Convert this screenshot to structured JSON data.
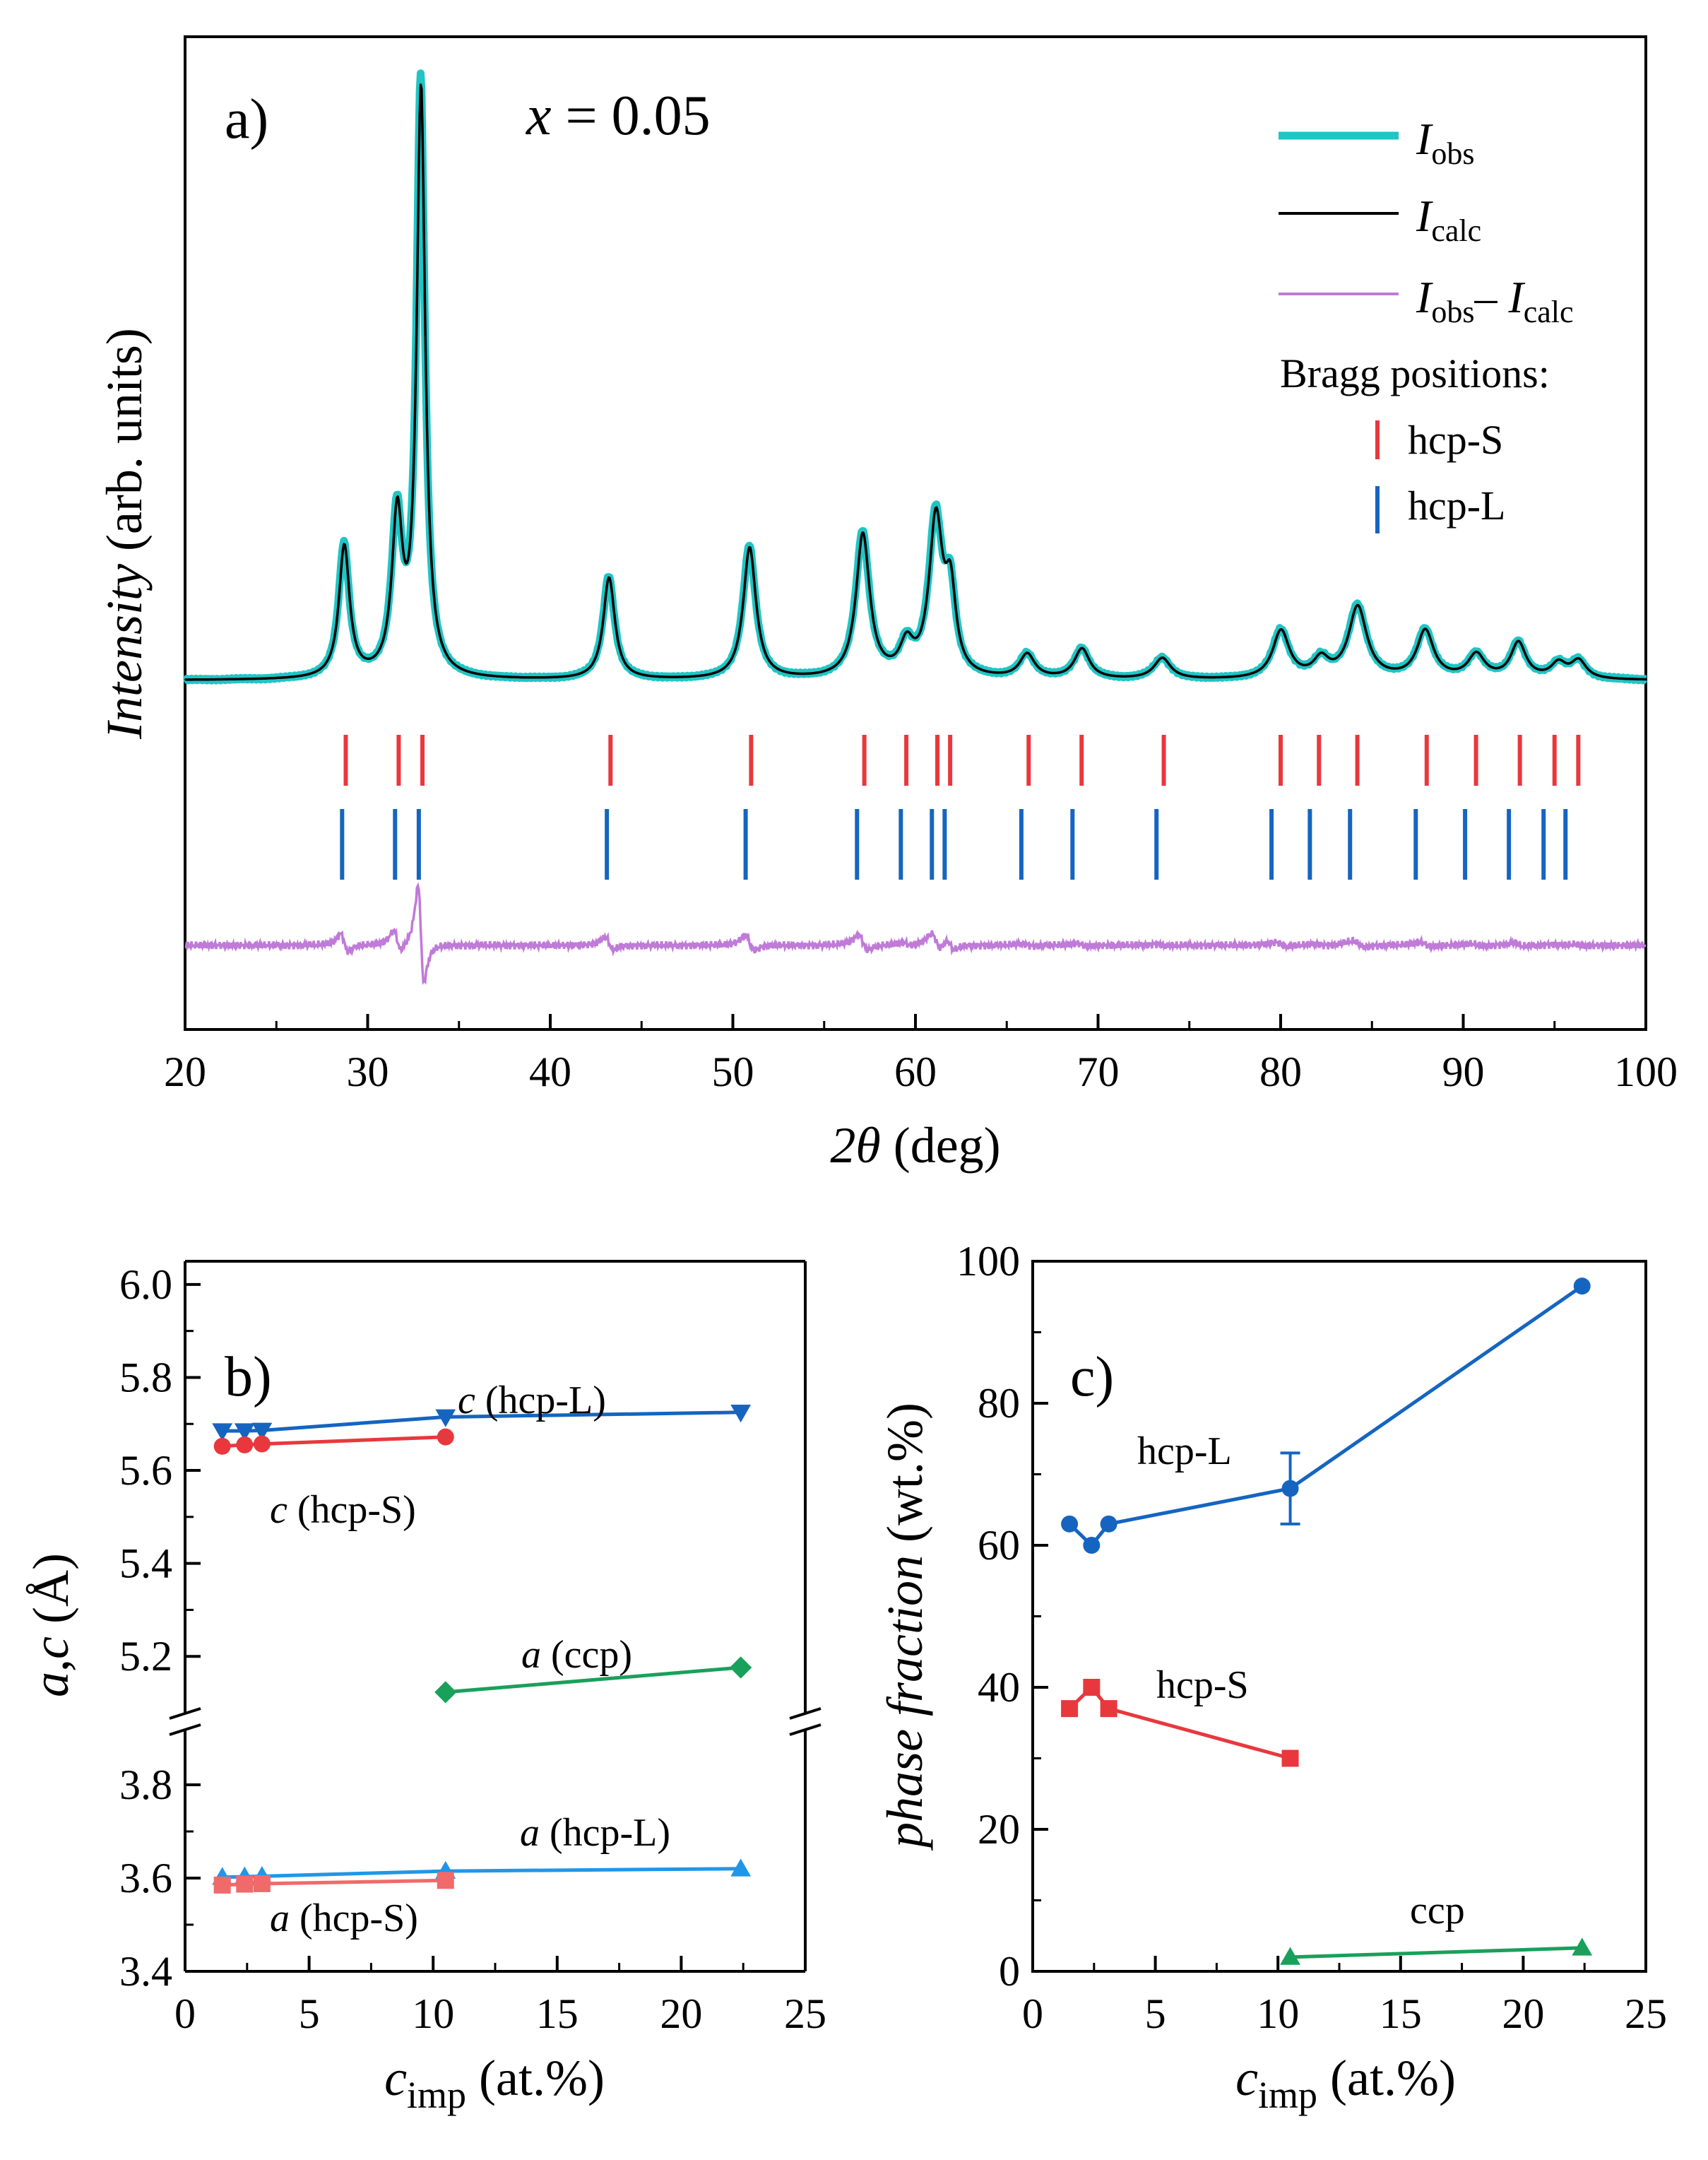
{
  "chart_data": [
    {
      "panel": "a",
      "type": "line",
      "panel_label": "a)",
      "annotation": {
        "var": "x",
        "eq": " = 0.05"
      },
      "xlabel": {
        "sym": "2θ",
        "unit": " (deg)"
      },
      "ylabel": {
        "sym": "Intensity",
        "unit": " (arb. units)"
      },
      "xlim": [
        20,
        100
      ],
      "xticks": [
        20,
        30,
        40,
        50,
        60,
        70,
        80,
        90,
        100
      ],
      "colors": {
        "obs": "#20c5c5",
        "calc": "#000000",
        "diff": "#c07ad8",
        "hcpS": "#e8383d",
        "hcpL": "#1565c0"
      },
      "legend": {
        "obs": {
          "main": "I",
          "sub": "obs"
        },
        "calc": {
          "main": "I",
          "sub": "calc"
        },
        "diff": {
          "main1": "I",
          "sub1": "obs",
          "minus": "– ",
          "main2": "I",
          "sub2": "calc"
        },
        "bragg_title": "Bragg positions:",
        "hcpS": "hcp-S",
        "hcpL": "hcp-L"
      },
      "peaks_obs": [
        {
          "pos": 28.7,
          "height": 0.22,
          "width": 0.35
        },
        {
          "pos": 31.6,
          "height": 0.26,
          "width": 0.35
        },
        {
          "pos": 32.9,
          "height": 0.98,
          "width": 0.28
        },
        {
          "pos": 43.2,
          "height": 0.17,
          "width": 0.38
        },
        {
          "pos": 50.9,
          "height": 0.22,
          "width": 0.42
        },
        {
          "pos": 57.1,
          "height": 0.24,
          "width": 0.45
        },
        {
          "pos": 59.5,
          "height": 0.05,
          "width": 0.45
        },
        {
          "pos": 61.1,
          "height": 0.26,
          "width": 0.45
        },
        {
          "pos": 61.9,
          "height": 0.13,
          "width": 0.35
        },
        {
          "pos": 66.1,
          "height": 0.04,
          "width": 0.5
        },
        {
          "pos": 69.1,
          "height": 0.05,
          "width": 0.5
        },
        {
          "pos": 73.5,
          "height": 0.035,
          "width": 0.55
        },
        {
          "pos": 80.0,
          "height": 0.08,
          "width": 0.55
        },
        {
          "pos": 82.2,
          "height": 0.03,
          "width": 0.5
        },
        {
          "pos": 84.2,
          "height": 0.12,
          "width": 0.6
        },
        {
          "pos": 87.9,
          "height": 0.08,
          "width": 0.55
        },
        {
          "pos": 90.7,
          "height": 0.04,
          "width": 0.55
        },
        {
          "pos": 93.0,
          "height": 0.06,
          "width": 0.5
        },
        {
          "pos": 95.2,
          "height": 0.025,
          "width": 0.5
        },
        {
          "pos": 96.3,
          "height": 0.03,
          "width": 0.5
        }
      ],
      "bragg_hcpS": [
        28.8,
        31.7,
        33.0,
        43.3,
        51.0,
        57.2,
        59.5,
        61.2,
        61.9,
        66.2,
        69.1,
        73.6,
        80.0,
        82.1,
        84.2,
        88.0,
        90.7,
        93.1,
        95.0,
        96.3
      ],
      "bragg_hcpL": [
        28.6,
        31.5,
        32.8,
        43.1,
        50.7,
        56.8,
        59.2,
        60.9,
        61.6,
        65.8,
        68.6,
        73.2,
        79.5,
        81.6,
        83.8,
        87.4,
        90.1,
        92.5,
        94.4,
        95.6
      ]
    },
    {
      "panel": "b",
      "type": "scatter",
      "panel_label": "b)",
      "xlabel": {
        "sym": "c",
        "sub": "imp",
        "unit": " (at.%)"
      },
      "ylabel": {
        "sym1": "a",
        "sep": ",",
        "sym2": "c",
        "unit": " (Å)"
      },
      "xlim": [
        0,
        25
      ],
      "xticks": [
        0,
        5,
        10,
        15,
        20,
        25
      ],
      "ylim_lower": [
        3.4,
        3.9
      ],
      "ylim_upper": [
        5.1,
        6.05
      ],
      "yticks_lower": [
        "3.4",
        "3.6",
        "3.8"
      ],
      "yticks_upper": [
        "5.2",
        "5.4",
        "5.6",
        "5.8",
        "6.0"
      ],
      "series": [
        {
          "name": "c (hcp-L)",
          "label_sym": "c",
          "label_rest": " (hcp-L)",
          "color": "#1565c0",
          "marker": "tri-down",
          "x": [
            1.5,
            2.4,
            3.1,
            10.5,
            22.4
          ],
          "y": [
            5.685,
            5.685,
            5.686,
            5.715,
            5.725
          ]
        },
        {
          "name": "c (hcp-S)",
          "label_sym": "c",
          "label_rest": " (hcp-S)",
          "color": "#e8383d",
          "marker": "circle",
          "x": [
            1.5,
            2.4,
            3.1,
            10.5
          ],
          "y": [
            5.652,
            5.655,
            5.657,
            5.672
          ]
        },
        {
          "name": "a (ccp)",
          "label_sym": "a",
          "label_rest": " (ccp)",
          "color": "#19a05a",
          "marker": "diamond",
          "x": [
            10.5,
            22.4
          ],
          "y": [
            5.123,
            5.176
          ]
        },
        {
          "name": "a (hcp-L)",
          "label_sym": "a",
          "label_rest": " (hcp-L)",
          "color": "#2196e8",
          "marker": "tri-up",
          "x": [
            1.5,
            2.4,
            3.1,
            10.5,
            22.4
          ],
          "y": [
            3.602,
            3.603,
            3.604,
            3.615,
            3.62
          ]
        },
        {
          "name": "a (hcp-S)",
          "label_sym": "a",
          "label_rest": " (hcp-S)",
          "color": "#f06a6a",
          "marker": "square",
          "x": [
            1.5,
            2.4,
            3.1,
            10.5
          ],
          "y": [
            3.585,
            3.587,
            3.588,
            3.595
          ]
        }
      ]
    },
    {
      "panel": "c",
      "type": "line",
      "panel_label": "c)",
      "xlabel": {
        "sym": "c",
        "sub": "imp",
        "unit": " (at.%)"
      },
      "ylabel": {
        "sym": "phase fraction",
        "unit": " (wt.%)"
      },
      "xlim": [
        0,
        25
      ],
      "xticks": [
        0,
        5,
        10,
        15,
        20,
        25
      ],
      "ylim": [
        0,
        100
      ],
      "yticks": [
        0,
        20,
        40,
        60,
        80,
        100
      ],
      "series": [
        {
          "name": "hcp-L",
          "color": "#1565c0",
          "marker": "circle",
          "x": [
            1.5,
            2.4,
            3.1,
            10.5,
            22.4
          ],
          "y": [
            63,
            60,
            63,
            68,
            96.5
          ],
          "error": [
            0,
            0,
            0,
            5,
            0
          ]
        },
        {
          "name": "hcp-S",
          "color": "#e8383d",
          "marker": "square",
          "x": [
            1.5,
            2.4,
            3.1,
            10.5
          ],
          "y": [
            37,
            40,
            37,
            30
          ]
        },
        {
          "name": "ccp",
          "color": "#19a05a",
          "marker": "tri-up",
          "x": [
            10.5,
            22.4
          ],
          "y": [
            2,
            3.3
          ]
        }
      ]
    }
  ]
}
